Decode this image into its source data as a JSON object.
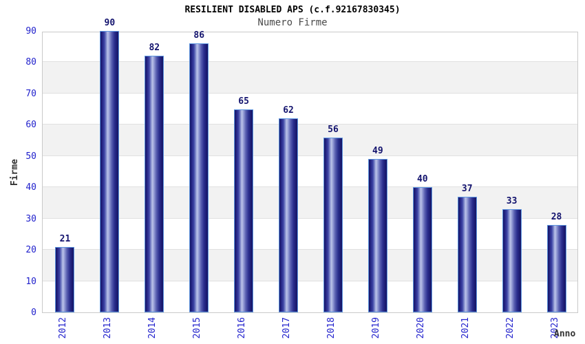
{
  "header": {
    "title": "RESILIENT DISABLED APS (c.f.92167830345)",
    "subtitle": "Numero Firme"
  },
  "chart_data": {
    "type": "bar",
    "title": "RESILIENT DISABLED APS (c.f.92167830345)",
    "subtitle": "Numero Firme",
    "categories": [
      "2012",
      "2013",
      "2014",
      "2015",
      "2016",
      "2017",
      "2018",
      "2019",
      "2020",
      "2021",
      "2022",
      "2023"
    ],
    "values": [
      21,
      90,
      82,
      86,
      65,
      62,
      56,
      49,
      40,
      37,
      33,
      28
    ],
    "xlabel": "Anno",
    "ylabel": "Firme",
    "ylim": [
      0,
      90
    ],
    "ytick_step": 10,
    "yticks": [
      0,
      10,
      20,
      30,
      40,
      50,
      60,
      70,
      80,
      90
    ],
    "grid": "alternating-horizontal-bands",
    "legend": "none",
    "colors": {
      "bar_dark": "#171765",
      "bar_highlight": "#bcc4ea",
      "bar_border": "#5e96e0",
      "tick_label": "#2121cc",
      "value_label": "#13136e",
      "band_gray": "#f2f2f2",
      "gridline": "#e0e0e0",
      "plot_border": "#c9c9c9",
      "title": "#000000",
      "subtitle": "#4a4a4a",
      "axis_title": "#333333",
      "background": "#ffffff"
    }
  }
}
